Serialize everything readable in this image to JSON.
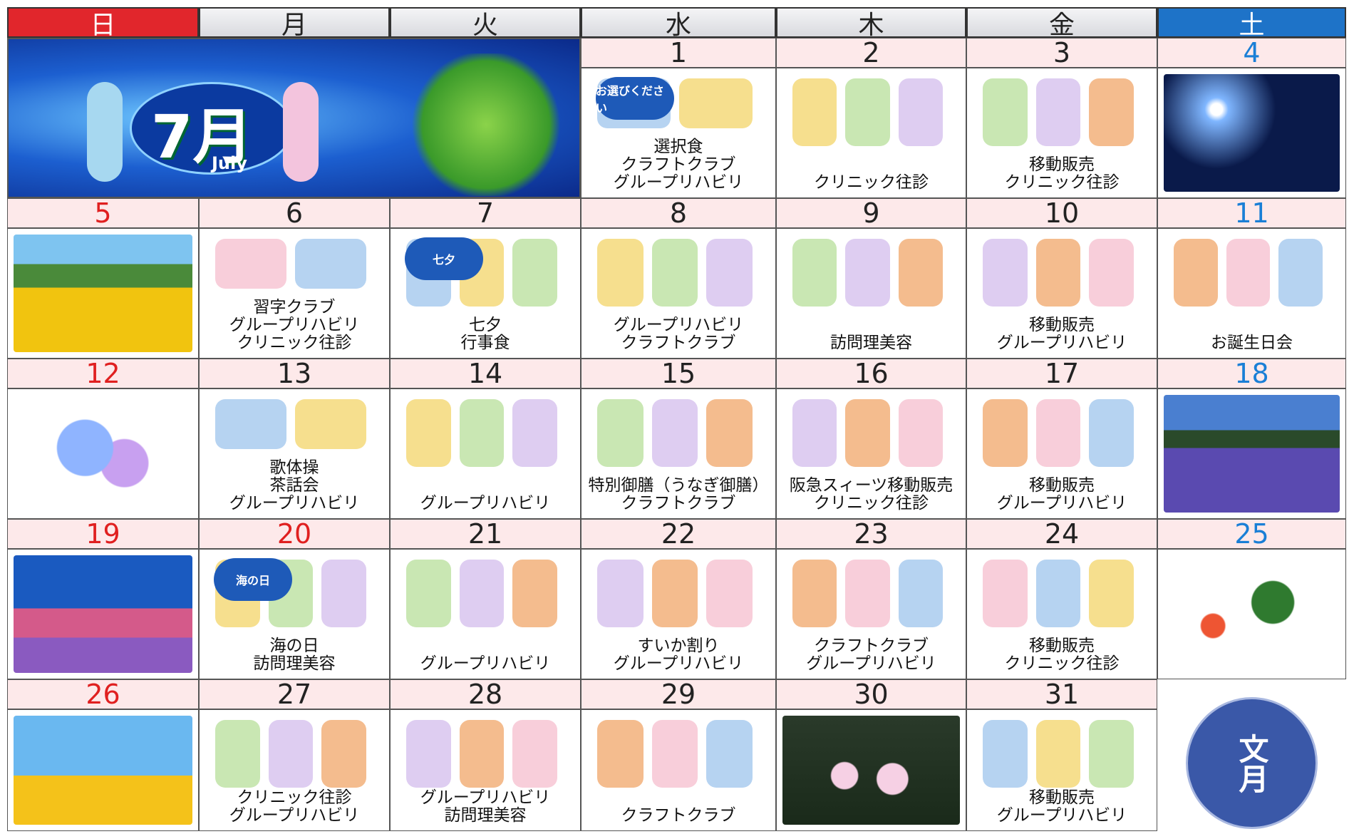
{
  "banner": {
    "month": "7月",
    "english": "July"
  },
  "weekdays": [
    "日",
    "月",
    "火",
    "水",
    "木",
    "金",
    "土"
  ],
  "weeks": [
    [
      {
        "day": 1,
        "lines": [
          "選択食",
          "クラフトクラブ",
          "グループリハビリ"
        ],
        "badge": "お選びください"
      },
      {
        "day": 2,
        "lines": [
          "クリニック往診"
        ]
      },
      {
        "day": 3,
        "lines": [
          "移動販売",
          "クリニック往診"
        ]
      },
      {
        "day": 4,
        "lines": []
      }
    ],
    [
      {
        "day": 5,
        "lines": []
      },
      {
        "day": 6,
        "lines": [
          "習字クラブ",
          "グループリハビリ",
          "クリニック往診"
        ]
      },
      {
        "day": 7,
        "lines": [
          "七夕",
          "行事食"
        ],
        "badge": "七夕"
      },
      {
        "day": 8,
        "lines": [
          "グループリハビリ",
          "クラフトクラブ"
        ]
      },
      {
        "day": 9,
        "lines": [
          "訪問理美容"
        ]
      },
      {
        "day": 10,
        "lines": [
          "移動販売",
          "グループリハビリ"
        ]
      },
      {
        "day": 11,
        "lines": [
          "お誕生日会"
        ]
      }
    ],
    [
      {
        "day": 12,
        "lines": []
      },
      {
        "day": 13,
        "lines": [
          "歌体操",
          "茶話会",
          "グループリハビリ"
        ]
      },
      {
        "day": 14,
        "lines": [
          "グループリハビリ"
        ]
      },
      {
        "day": 15,
        "lines": [
          "特別御膳（うなぎ御膳）",
          "クラフトクラブ"
        ]
      },
      {
        "day": 16,
        "lines": [
          "阪急スィーツ移動販売",
          "クリニック往診"
        ]
      },
      {
        "day": 17,
        "lines": [
          "移動販売",
          "グループリハビリ"
        ]
      },
      {
        "day": 18,
        "lines": []
      }
    ],
    [
      {
        "day": 19,
        "lines": []
      },
      {
        "day": 20,
        "lines": [
          "海の日",
          "訪問理美容"
        ],
        "badge": "海の日",
        "holiday": true
      },
      {
        "day": 21,
        "lines": [
          "グループリハビリ"
        ]
      },
      {
        "day": 22,
        "lines": [
          "すいか割り",
          "グループリハビリ"
        ]
      },
      {
        "day": 23,
        "lines": [
          "クラフトクラブ",
          "グループリハビリ"
        ]
      },
      {
        "day": 24,
        "lines": [
          "移動販売",
          "クリニック往診"
        ]
      },
      {
        "day": 25,
        "lines": []
      }
    ],
    [
      {
        "day": 26,
        "lines": []
      },
      {
        "day": 27,
        "lines": [
          "クリニック往診",
          "グループリハビリ"
        ]
      },
      {
        "day": 28,
        "lines": [
          "グループリハビリ",
          "訪問理美容"
        ]
      },
      {
        "day": 29,
        "lines": [
          "クラフトクラブ"
        ]
      },
      {
        "day": 30,
        "lines": []
      },
      {
        "day": 31,
        "lines": [
          "移動販売",
          "グループリハビリ"
        ]
      }
    ]
  ],
  "corner_badge": "文月"
}
